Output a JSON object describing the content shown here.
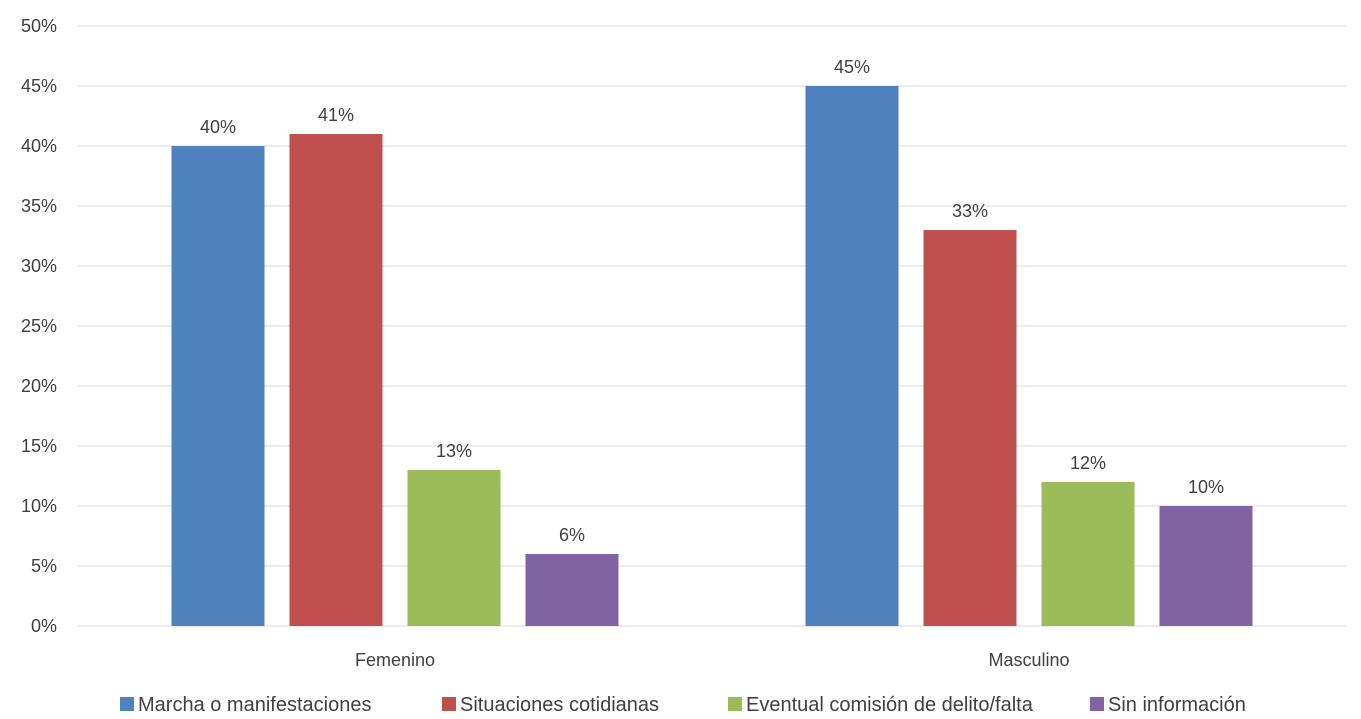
{
  "chart_data": {
    "type": "bar",
    "categories": [
      "Femenino",
      "Masculino"
    ],
    "series": [
      {
        "name": "Marcha o manifestaciones",
        "values": [
          40,
          45
        ],
        "labels": [
          "40%",
          "45%"
        ],
        "color": "#4f81bd"
      },
      {
        "name": "Situaciones cotidianas",
        "values": [
          41,
          33
        ],
        "labels": [
          "41%",
          "33%"
        ],
        "color": "#c0504d"
      },
      {
        "name": "Eventual comisión de delito/falta",
        "values": [
          13,
          12
        ],
        "labels": [
          "13%",
          "12%"
        ],
        "color": "#9bbb59"
      },
      {
        "name": "Sin información",
        "values": [
          6,
          10
        ],
        "labels": [
          "6%",
          "10%"
        ],
        "color": "#8064a2"
      }
    ],
    "ylim": [
      0,
      50
    ],
    "yticks": [
      0,
      5,
      10,
      15,
      20,
      25,
      30,
      35,
      40,
      45,
      50
    ],
    "ytick_labels": [
      "0%",
      "5%",
      "10%",
      "15%",
      "20%",
      "25%",
      "30%",
      "35%",
      "40%",
      "45%",
      "50%"
    ],
    "grid": true,
    "legend_position": "bottom",
    "title": "",
    "xlabel": "",
    "ylabel": ""
  }
}
